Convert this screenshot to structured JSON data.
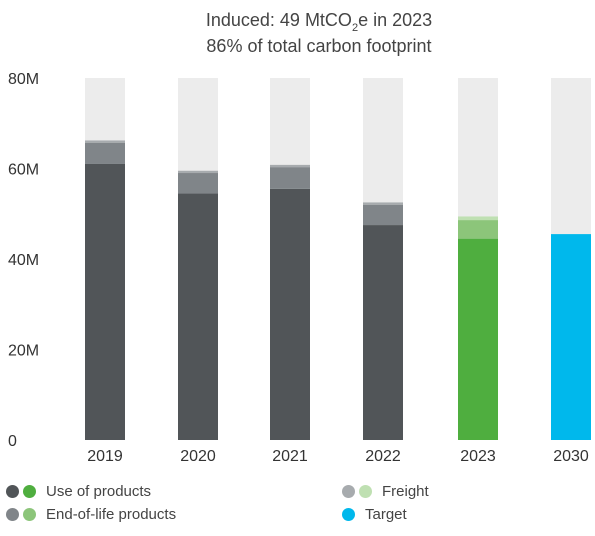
{
  "chart_data": {
    "type": "bar",
    "stacked": true,
    "title_line1_prefix": "Induced: 49 MtCO",
    "title_line1_sub": "2",
    "title_line1_suffix": "e in 2023",
    "title_line2": "86% of total carbon footprint",
    "categories": [
      "2019",
      "2020",
      "2021",
      "2022",
      "2023",
      "2030"
    ],
    "y_ticks": [
      "0",
      "20M",
      "40M",
      "60M",
      "80M"
    ],
    "ylim": [
      0,
      80000000
    ],
    "grid": false,
    "series": [
      {
        "name": "Use of products",
        "values": [
          61000000,
          54500000,
          55500000,
          47500000,
          44500000,
          0
        ]
      },
      {
        "name": "End-of-life products",
        "values": [
          4700000,
          4500000,
          4800000,
          4500000,
          4100000,
          0
        ]
      },
      {
        "name": "Freight",
        "values": [
          500000,
          500000,
          500000,
          500000,
          800000,
          0
        ]
      },
      {
        "name": "Target",
        "values": [
          0,
          0,
          0,
          0,
          0,
          45500000
        ]
      }
    ],
    "colors": {
      "use_gray": "#515558",
      "eol_gray": "#808589",
      "freight_gray": "#a7abae",
      "use_green": "#4fae3f",
      "eol_green": "#8cc57a",
      "freight_green": "#bfe0b2",
      "target": "#00b8ec",
      "background_bar": "#ececec"
    },
    "legend": [
      {
        "label": "Use of products",
        "dots": [
          "#515558",
          "#4fae3f"
        ]
      },
      {
        "label": "End-of-life products",
        "dots": [
          "#808589",
          "#8cc57a"
        ]
      },
      {
        "label": "Freight",
        "dots": [
          "#a7abae",
          "#bfe0b2"
        ]
      },
      {
        "label": "Target",
        "dots": [
          "#00b8ec"
        ]
      }
    ]
  }
}
